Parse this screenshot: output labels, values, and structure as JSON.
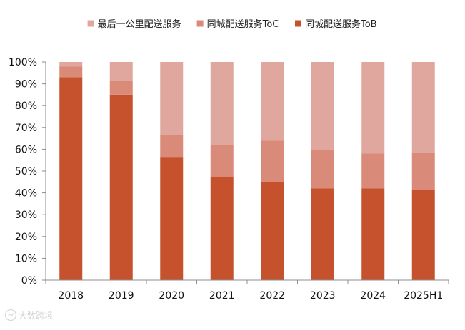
{
  "chart_data": {
    "type": "bar",
    "stacked": true,
    "categories": [
      "2018",
      "2019",
      "2020",
      "2021",
      "2022",
      "2023",
      "2024",
      "2025H1"
    ],
    "series": [
      {
        "name": "同城配送服务ToB",
        "color": "#C5522D",
        "values": [
          93,
          85,
          56.5,
          47.5,
          45,
          42,
          42,
          41.5
        ]
      },
      {
        "name": "同城配送服务ToC",
        "color": "#D98A78",
        "values": [
          5,
          6.5,
          10,
          14.5,
          19,
          17.5,
          16,
          17
        ]
      },
      {
        "name": "最后一公里配送服务",
        "color": "#DFA79E",
        "values": [
          2,
          8.5,
          33.5,
          38,
          36,
          40.5,
          42,
          41.5
        ]
      }
    ],
    "legend_order": [
      "最后一公里配送服务",
      "同城配送服务ToC",
      "同城配送服务ToB"
    ],
    "legend_position": "top",
    "ylim": [
      0,
      100
    ],
    "yticks": [
      "0%",
      "10%",
      "20%",
      "30%",
      "40%",
      "50%",
      "60%",
      "70%",
      "80%",
      "90%",
      "100%"
    ],
    "grid": false,
    "xlabel": "",
    "ylabel": "",
    "title": ""
  },
  "watermark": {
    "text": "大数跨境",
    "icon": "logo-icon"
  }
}
